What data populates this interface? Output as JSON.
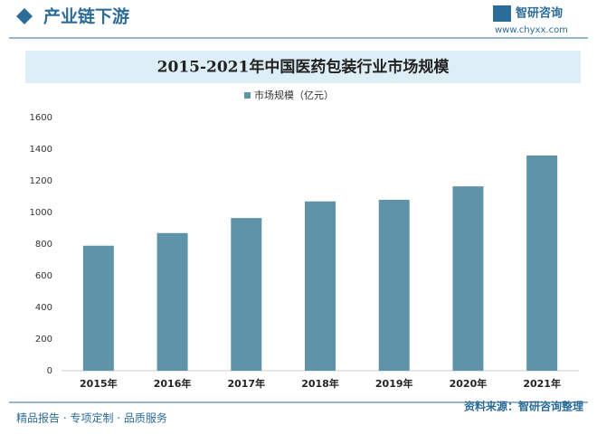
{
  "header": {
    "title": "产业链下游",
    "brand": "智研咨询",
    "url": "www.chyxx.com"
  },
  "chart_data": {
    "type": "bar",
    "title": "2015-2021年中国医药包装行业市场规模",
    "categories": [
      "2015年",
      "2016年",
      "2017年",
      "2018年",
      "2019年",
      "2020年",
      "2021年"
    ],
    "series": [
      {
        "name": "市场规模（亿元）",
        "color": "#5f93a8",
        "values": [
          790,
          870,
          965,
          1070,
          1080,
          1165,
          1360
        ]
      }
    ],
    "ylim": [
      0,
      1600
    ],
    "yticks": [
      0,
      200,
      400,
      600,
      800,
      1000,
      1200,
      1400,
      1600
    ],
    "grid": false,
    "legend": "top"
  },
  "footer": {
    "slogan": "精品报告 · 专项定制 · 品质服务",
    "source": "资料来源：智研咨询整理"
  }
}
